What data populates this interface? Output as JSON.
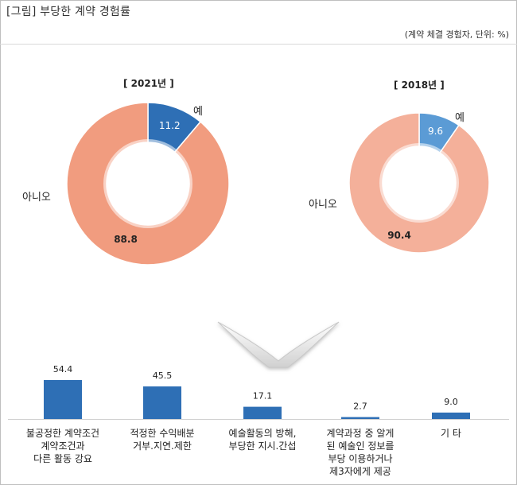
{
  "header": {
    "title": "[그림] 부당한 계약 경험률",
    "note": "(계약 체결 경험자, 단위: %)"
  },
  "colors": {
    "yes_2021": "#2e6fb5",
    "no_2021": "#f19c7f",
    "yes_2018": "#5b9bd5",
    "no_2018": "#f4b09a",
    "bar": "#2e6fb5"
  },
  "chart_data": [
    {
      "type": "pie",
      "title": "[ 2021년 ]",
      "categories": [
        "예",
        "아니오"
      ],
      "values": [
        11.2,
        88.8
      ],
      "value_labels": [
        "11.2",
        "88.8"
      ]
    },
    {
      "type": "pie",
      "title": "[ 2018년 ]",
      "categories": [
        "예",
        "아니오"
      ],
      "values": [
        9.6,
        90.4
      ],
      "value_labels": [
        "9.6",
        "90.4"
      ]
    },
    {
      "type": "bar",
      "categories": [
        "불공정한 계약조건\n계약조건과\n다른 활동 강요",
        "적정한 수익배분\n거부.지연.제한",
        "예술활동의 방해,\n부당한 지시.간섭",
        "계약과정 중 알게\n된 예술인 정보를\n부당 이용하거나\n제3자에게 제공",
        "기 타"
      ],
      "values": [
        54.4,
        45.5,
        17.1,
        2.7,
        9.0
      ],
      "value_labels": [
        "54.4",
        "45.5",
        "17.1",
        "2.7",
        "9.0"
      ],
      "ylim": [
        0,
        60
      ]
    }
  ]
}
